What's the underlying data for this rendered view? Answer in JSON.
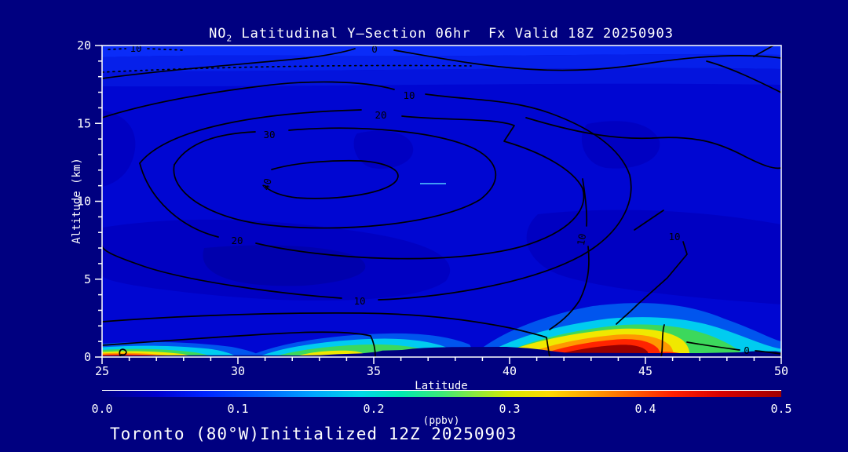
{
  "title": {
    "prefix": "NO",
    "subscript": "2",
    "rest": " Latitudinal Y—Section 06hr  Fx Valid 18Z 20250903"
  },
  "footer": "Toronto (80°W)Initialized 12Z 20250903",
  "axes": {
    "x": {
      "label": "Latitude",
      "ticks": [
        "25",
        "30",
        "35",
        "40",
        "45",
        "50"
      ],
      "minor_per_major": 5
    },
    "y": {
      "label": "Altitude (km)",
      "ticks_bottom_up": [
        "0",
        "5",
        "10",
        "15",
        "20"
      ]
    }
  },
  "contour_labels": {
    "zero_top": "0",
    "ten_topleft": "10",
    "ten_upper": "10",
    "twenty_upper": "20",
    "thirty": "30",
    "forty": "40",
    "twenty_lower": "20",
    "ten_lower": "10",
    "ten_right_rot": "10",
    "ten_right": "10",
    "zero_bottom": "0"
  },
  "colorbar": {
    "ticks": [
      "0.0",
      "0.1",
      "0.2",
      "0.3",
      "0.4",
      "0.5"
    ],
    "unit": "(ppbv)",
    "gradient": [
      "#000080 0%",
      "#0000cd 8%",
      "#0023ff 15%",
      "#0066ff 24%",
      "#00a4ff 31%",
      "#00d8e8 38%",
      "#00e8b0 44%",
      "#3ce878 50%",
      "#8ce83c 55%",
      "#d8e800 60%",
      "#ffd800 66%",
      "#ffa000 72%",
      "#ff6000 78%",
      "#ff2000 84%",
      "#d80000 91%",
      "#a00000 100%"
    ]
  },
  "palette": {
    "bg": "#000080",
    "base": "#0006d2",
    "base2": "#0000c2",
    "dark": "#0000ad",
    "top1": "#0a2cf8",
    "top2": "#0620ea",
    "top3": "#0414dd",
    "halo": "#0055ee",
    "cyan": "#00ccf0",
    "green": "#3cd85c",
    "yellow": "#f0e800",
    "orange": "#ff9800",
    "red": "#ff2400",
    "darkred": "#980000",
    "terrain": "#000080",
    "contour": "#000000",
    "frame": "#ffffff",
    "cyan_dash": "#55ccff"
  },
  "chart_data": {
    "type": "heatmap",
    "title": "NO2 Latitudinal Y-Section 06hr Fx Valid 18Z 20250903",
    "xlabel": "Latitude",
    "ylabel": "Altitude (km)",
    "xlim": [
      25,
      50
    ],
    "ylim": [
      0,
      20
    ],
    "fill_units": "ppbv",
    "fill_range": [
      0.0,
      0.5
    ],
    "colorbar_ticks": [
      0.0,
      0.1,
      0.2,
      0.3,
      0.4,
      0.5
    ],
    "line_contour_levels": [
      0,
      10,
      20,
      30,
      40
    ],
    "line_contour_feature": {
      "description": "nested closed contours (0,10,20,30,40) centered near lat 33 at 12 km altitude",
      "center_lat": 33,
      "center_altitude_km": 12,
      "innermost_level": 40
    },
    "fill_field_summary": "background 0.0-0.1 ppbv blue shades aloft; enhanced NO2 confined below ~2 km",
    "surface_features": [
      {
        "lat_range": [
          25,
          27.5
        ],
        "altitude_km": [
          0,
          0.5
        ],
        "peak_value_ppbv": 0.5,
        "note": "thin dark-red strip at surface"
      },
      {
        "lat_range": [
          31,
          37
        ],
        "altitude_km": [
          0,
          1.2
        ],
        "peak_value_ppbv": 0.3,
        "note": "cyan-green band with yellow patches near lat 33 and 35"
      },
      {
        "lat_range": [
          41.5,
          46.5
        ],
        "altitude_km": [
          0,
          2
        ],
        "peak_value_ppbv": 0.5,
        "note": "large dark-red maximum centered near lat 44"
      },
      {
        "lat_range": [
          46.5,
          50
        ],
        "altitude_km": [
          0,
          1
        ],
        "peak_value_ppbv": 0.25,
        "note": "cyan-green band fading toward lat 50"
      }
    ],
    "terrain": "navy surface-elevation silhouette along bottom, broad bump lat 36.5-41.5",
    "grid": false,
    "legend_position": "horizontal colorbar below plot"
  }
}
